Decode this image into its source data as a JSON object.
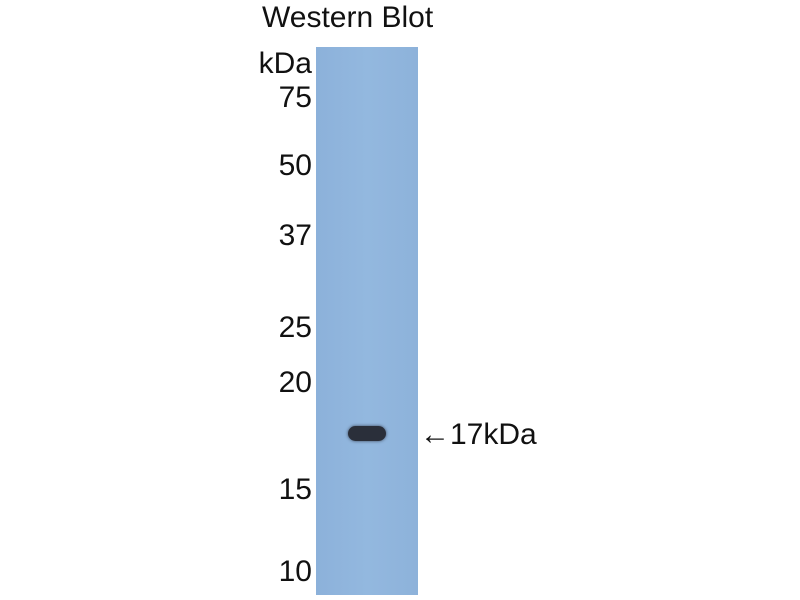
{
  "title": "Western Blot",
  "unit": "kDa",
  "markers": [
    "75",
    "50",
    "37",
    "25",
    "20",
    "15",
    "10"
  ],
  "band_label": "←17kDa",
  "colors": {
    "membrane": "#8fb4dc",
    "band": "#2a2f3a"
  }
}
